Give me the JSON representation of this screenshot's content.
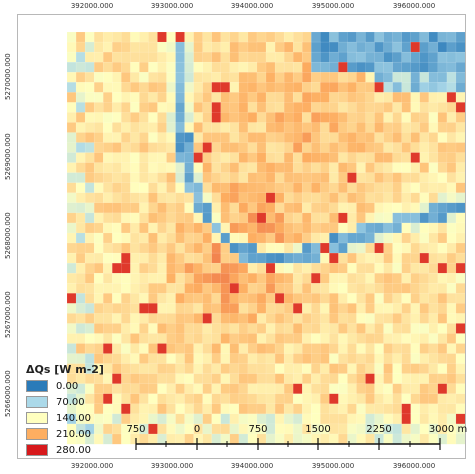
{
  "map": {
    "x_ticks": [
      "392000.000",
      "393000.000",
      "394000.000",
      "395000.000",
      "396000.000"
    ],
    "y_ticks": [
      "5270000.000",
      "5269000.000",
      "5268000.000",
      "5267000.000",
      "5266000.000"
    ],
    "grid": {
      "cols": 44,
      "rows": 41
    }
  },
  "legend": {
    "title": "ΔQs [W m-2]",
    "items": [
      {
        "label": "0.00",
        "color": "#2b7bb9"
      },
      {
        "label": "70.00",
        "color": "#abd9e9"
      },
      {
        "label": "140.00",
        "color": "#ffffbf"
      },
      {
        "label": "210.00",
        "color": "#fdae61"
      },
      {
        "label": "280.00",
        "color": "#d7191c"
      }
    ]
  },
  "scalebar": {
    "labels": [
      "750",
      "0",
      "750",
      "1500",
      "2250",
      "3000 m"
    ]
  }
}
